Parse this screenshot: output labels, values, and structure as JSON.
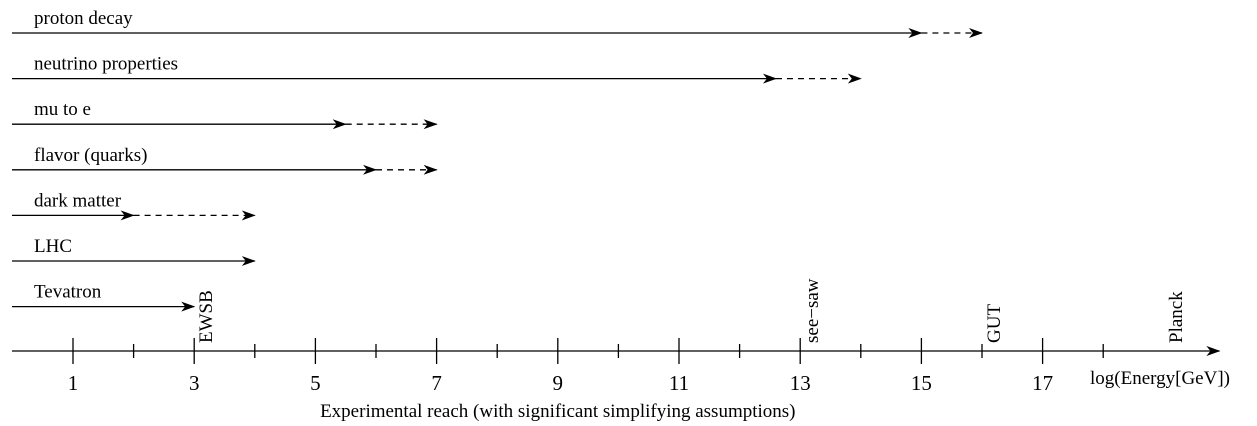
{
  "chart_data": {
    "type": "range-diagram",
    "xlabel": "log(Energy[GeV])",
    "caption": "Experimental reach (with significant simplifying assumptions)",
    "xlim": [
      0,
      20
    ],
    "major_ticks": [
      1,
      3,
      5,
      7,
      9,
      11,
      13,
      15,
      17
    ],
    "minor_ticks": [
      2,
      4,
      6,
      8,
      10,
      12,
      14,
      16,
      18
    ],
    "ranges": [
      {
        "name": "proton decay",
        "solid_to": 15,
        "dashed_to": 16
      },
      {
        "name": "neutrino properties",
        "solid_to": 12.6,
        "dashed_to": 14
      },
      {
        "name": "mu to e",
        "solid_to": 5.5,
        "dashed_to": 7
      },
      {
        "name": "flavor (quarks)",
        "solid_to": 6,
        "dashed_to": 7
      },
      {
        "name": "dark matter",
        "solid_to": 2,
        "dashed_to": 4
      },
      {
        "name": "LHC",
        "solid_to": 4,
        "dashed_to": null
      },
      {
        "name": "Tevatron",
        "solid_to": 3,
        "dashed_to": null
      }
    ],
    "scale_markers": [
      {
        "label": "EWSB",
        "x": 3
      },
      {
        "label": "see−saw",
        "x": 13
      },
      {
        "label": "GUT",
        "x": 16
      },
      {
        "label": "Planck",
        "x": 19
      }
    ]
  }
}
